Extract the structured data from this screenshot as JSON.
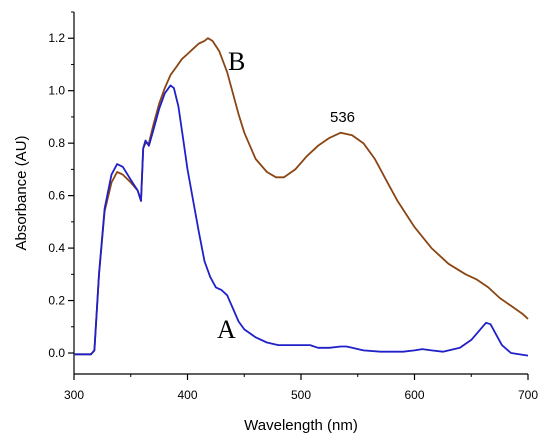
{
  "chart_data": {
    "type": "line",
    "xlabel": "Wavelength (nm)",
    "ylabel": "Absorbance (AU)",
    "xlim": [
      300,
      700
    ],
    "ylim": [
      -0.08,
      1.3
    ],
    "x_ticks": [
      "300",
      "400",
      "500",
      "600",
      "700"
    ],
    "y_ticks": [
      "0.0",
      "0.2",
      "0.4",
      "0.6",
      "0.8",
      "1.0",
      "1.2"
    ],
    "grid": false,
    "annotations": {
      "peak_label": "536",
      "series_a_label": "A",
      "series_b_label": "B"
    },
    "series": [
      {
        "name": "A",
        "color": "#2020c8",
        "points": [
          [
            300,
            -0.005
          ],
          [
            315,
            -0.005
          ],
          [
            318,
            0.01
          ],
          [
            322,
            0.3
          ],
          [
            327,
            0.55
          ],
          [
            333,
            0.68
          ],
          [
            338,
            0.72
          ],
          [
            343,
            0.71
          ],
          [
            350,
            0.66
          ],
          [
            356,
            0.62
          ],
          [
            359,
            0.58
          ],
          [
            361,
            0.78
          ],
          [
            363,
            0.81
          ],
          [
            366,
            0.79
          ],
          [
            370,
            0.85
          ],
          [
            375,
            0.93
          ],
          [
            380,
            0.99
          ],
          [
            385,
            1.02
          ],
          [
            388,
            1.01
          ],
          [
            392,
            0.94
          ],
          [
            396,
            0.82
          ],
          [
            400,
            0.7
          ],
          [
            405,
            0.58
          ],
          [
            410,
            0.46
          ],
          [
            415,
            0.35
          ],
          [
            420,
            0.29
          ],
          [
            425,
            0.25
          ],
          [
            430,
            0.24
          ],
          [
            435,
            0.22
          ],
          [
            440,
            0.17
          ],
          [
            445,
            0.12
          ],
          [
            450,
            0.09
          ],
          [
            460,
            0.06
          ],
          [
            470,
            0.04
          ],
          [
            480,
            0.03
          ],
          [
            490,
            0.03
          ],
          [
            500,
            0.03
          ],
          [
            508,
            0.03
          ],
          [
            515,
            0.02
          ],
          [
            525,
            0.02
          ],
          [
            535,
            0.025
          ],
          [
            540,
            0.025
          ],
          [
            545,
            0.02
          ],
          [
            555,
            0.01
          ],
          [
            570,
            0.005
          ],
          [
            590,
            0.005
          ],
          [
            600,
            0.01
          ],
          [
            607,
            0.015
          ],
          [
            615,
            0.01
          ],
          [
            625,
            0.005
          ],
          [
            640,
            0.02
          ],
          [
            650,
            0.05
          ],
          [
            658,
            0.09
          ],
          [
            663,
            0.115
          ],
          [
            667,
            0.11
          ],
          [
            672,
            0.07
          ],
          [
            677,
            0.03
          ],
          [
            685,
            0.0
          ],
          [
            700,
            -0.01
          ]
        ]
      },
      {
        "name": "B",
        "color": "#8b4513",
        "points": [
          [
            300,
            -0.005
          ],
          [
            315,
            -0.005
          ],
          [
            318,
            0.01
          ],
          [
            322,
            0.3
          ],
          [
            327,
            0.54
          ],
          [
            333,
            0.65
          ],
          [
            338,
            0.69
          ],
          [
            343,
            0.68
          ],
          [
            350,
            0.65
          ],
          [
            356,
            0.62
          ],
          [
            359,
            0.58
          ],
          [
            361,
            0.78
          ],
          [
            363,
            0.8
          ],
          [
            366,
            0.8
          ],
          [
            370,
            0.87
          ],
          [
            375,
            0.95
          ],
          [
            380,
            1.01
          ],
          [
            385,
            1.06
          ],
          [
            390,
            1.09
          ],
          [
            395,
            1.12
          ],
          [
            400,
            1.14
          ],
          [
            405,
            1.16
          ],
          [
            410,
            1.18
          ],
          [
            415,
            1.19
          ],
          [
            418,
            1.2
          ],
          [
            422,
            1.19
          ],
          [
            428,
            1.15
          ],
          [
            435,
            1.07
          ],
          [
            440,
            0.99
          ],
          [
            445,
            0.91
          ],
          [
            450,
            0.84
          ],
          [
            460,
            0.74
          ],
          [
            470,
            0.69
          ],
          [
            478,
            0.67
          ],
          [
            485,
            0.67
          ],
          [
            495,
            0.7
          ],
          [
            505,
            0.75
          ],
          [
            515,
            0.79
          ],
          [
            525,
            0.82
          ],
          [
            535,
            0.84
          ],
          [
            545,
            0.83
          ],
          [
            555,
            0.8
          ],
          [
            565,
            0.74
          ],
          [
            575,
            0.66
          ],
          [
            585,
            0.58
          ],
          [
            600,
            0.48
          ],
          [
            615,
            0.4
          ],
          [
            630,
            0.34
          ],
          [
            645,
            0.3
          ],
          [
            655,
            0.28
          ],
          [
            665,
            0.25
          ],
          [
            675,
            0.21
          ],
          [
            685,
            0.18
          ],
          [
            695,
            0.15
          ],
          [
            700,
            0.13
          ]
        ]
      }
    ]
  }
}
